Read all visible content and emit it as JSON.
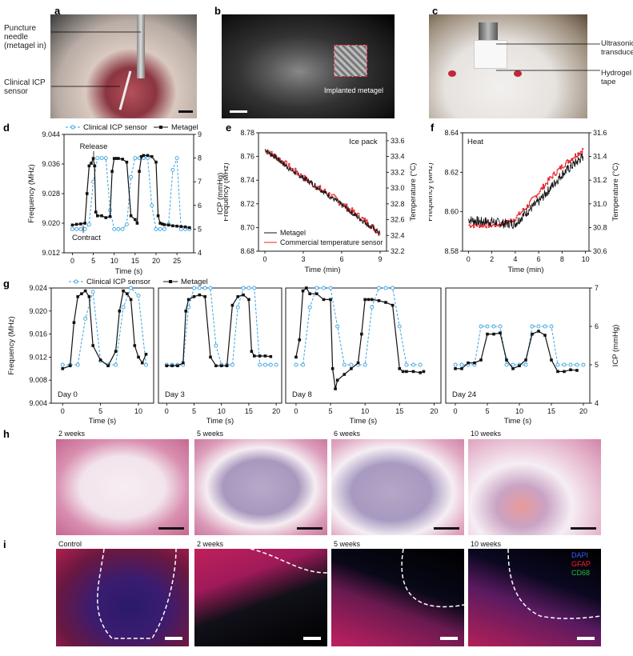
{
  "panels": {
    "a": {
      "label": "a",
      "needle": "Puncture needle (metagel in)",
      "sensor": "Clinical ICP sensor"
    },
    "b": {
      "label": "b",
      "implant": "Implanted metagel"
    },
    "c": {
      "label": "c",
      "transducer": "Ultrasonic transducer",
      "tape": "Hydrogel tape"
    },
    "d": {
      "label": "d"
    },
    "e": {
      "label": "e"
    },
    "f": {
      "label": "f"
    },
    "g": {
      "label": "g"
    },
    "h": {
      "label": "h",
      "weeks": [
        "2 weeks",
        "5 weeks",
        "6 weeks",
        "10 weeks"
      ]
    },
    "i": {
      "label": "i",
      "weeks": [
        "Control",
        "2 weeks",
        "5 weeks",
        "10 weeks"
      ],
      "stains": [
        "DAPI",
        "GFAP",
        "CD68"
      ]
    }
  },
  "colors": {
    "metagel": "#111111",
    "icp": "#3aa3e0",
    "temp": "#e8202a",
    "dapi": "#3a5bff",
    "gfap": "#ff2020",
    "cd68": "#20c040"
  },
  "chart_data": [
    {
      "id": "d",
      "type": "line",
      "xlabel": "Time (s)",
      "ylabel": "Frequency (MHz)",
      "y2label": "ICP (mmHg)",
      "xlim": [
        -2,
        29
      ],
      "ylim": [
        9.012,
        9.044
      ],
      "y2lim": [
        4,
        9
      ],
      "xticks": [
        0,
        5,
        10,
        15,
        20,
        25
      ],
      "yticks": [
        "9.012",
        "9.020",
        "9.028",
        "9.036",
        "9.044"
      ],
      "y2ticks": [
        "4",
        "5",
        "6",
        "7",
        "8",
        "9"
      ],
      "legend": [
        "Clinical ICP sensor",
        "Metagel"
      ],
      "annotations": [
        "Release",
        "Contract"
      ],
      "series": [
        {
          "name": "Metagel",
          "axis": "y",
          "x": [
            0,
            1,
            2,
            3,
            3.5,
            4,
            4.5,
            5,
            5.3,
            5.6,
            6,
            7,
            8,
            9,
            9.5,
            10,
            10.5,
            11,
            12,
            13,
            14,
            15,
            15.5,
            16,
            16.5,
            17,
            18,
            19,
            20,
            20.5,
            21,
            21.5,
            22,
            23,
            24,
            25,
            26,
            27,
            28
          ],
          "y": [
            9.0195,
            9.0197,
            9.0198,
            9.02,
            9.028,
            9.0355,
            9.0362,
            9.0375,
            9.0355,
            9.023,
            9.022,
            9.022,
            9.0215,
            9.0218,
            9.034,
            9.0375,
            9.0375,
            9.0375,
            9.0373,
            9.0365,
            9.022,
            9.021,
            9.02,
            9.034,
            9.038,
            9.0383,
            9.0383,
            9.038,
            9.0365,
            9.022,
            9.02,
            9.0198,
            9.0196,
            9.0195,
            9.0193,
            9.0192,
            9.0191,
            9.019,
            9.0188
          ]
        },
        {
          "name": "Clinical ICP sensor",
          "axis": "y2",
          "x": [
            0,
            1,
            2,
            3,
            4,
            5,
            6,
            7,
            8,
            9,
            10,
            11,
            12,
            13,
            14,
            15,
            16,
            17,
            18,
            19,
            20,
            21,
            22,
            23,
            24,
            25,
            26,
            27,
            28
          ],
          "y": [
            5,
            5,
            5,
            5,
            5.2,
            7,
            8,
            8,
            8,
            5.8,
            5,
            5,
            5,
            5.2,
            7.2,
            8,
            8,
            8,
            8,
            6,
            5,
            5,
            5,
            5.2,
            7.5,
            8,
            5,
            5,
            5
          ]
        }
      ]
    },
    {
      "id": "e",
      "type": "line",
      "annotation": "Ice pack",
      "xlabel": "Time (min)",
      "ylabel": "Frequency (MHz)",
      "y2label": "Temperature (°C)",
      "xlim": [
        -0.5,
        9.5
      ],
      "ylim": [
        8.68,
        8.78
      ],
      "y2lim": [
        32.2,
        33.7
      ],
      "xticks": [
        0,
        3,
        6,
        9
      ],
      "yticks": [
        "8.68",
        "8.70",
        "8.72",
        "8.74",
        "8.76",
        "8.78"
      ],
      "y2ticks": [
        "32.2",
        "32.4",
        "32.6",
        "32.8",
        "33.0",
        "33.2",
        "33.4",
        "33.6"
      ],
      "legend": [
        "Metagel",
        "Commercial temperature sensor"
      ],
      "series": [
        {
          "name": "Metagel",
          "axis": "y",
          "x": [
            0,
            1,
            2,
            3,
            4,
            5,
            6,
            7,
            8,
            9
          ],
          "y": [
            8.766,
            8.758,
            8.749,
            8.742,
            8.735,
            8.727,
            8.719,
            8.711,
            8.703,
            8.695
          ]
        },
        {
          "name": "Commercial temperature sensor",
          "axis": "y2",
          "x": [
            0,
            1,
            2,
            3,
            4,
            5,
            6,
            7,
            8,
            9
          ],
          "y": [
            33.48,
            33.38,
            33.25,
            33.13,
            33.02,
            32.92,
            32.8,
            32.68,
            32.56,
            32.42
          ]
        }
      ]
    },
    {
      "id": "f",
      "type": "line",
      "annotation": "Heat",
      "xlabel": "Time (min)",
      "ylabel": "Frequency (MHz)",
      "y2label": "Temperature (°C)",
      "xlim": [
        -0.5,
        10.3
      ],
      "ylim": [
        8.58,
        8.64
      ],
      "y2lim": [
        30.6,
        31.6
      ],
      "xticks": [
        0,
        2,
        4,
        6,
        8,
        10
      ],
      "yticks": [
        "8.58",
        "8.60",
        "8.62",
        "8.64"
      ],
      "y2ticks": [
        "30.6",
        "30.8",
        "31.0",
        "31.2",
        "31.4",
        "31.6"
      ],
      "series": [
        {
          "name": "Metagel",
          "axis": "y",
          "x": [
            0,
            1,
            2,
            3,
            4,
            5,
            6,
            7,
            8,
            9,
            9.8
          ],
          "y": [
            8.596,
            8.595,
            8.595,
            8.594,
            8.594,
            8.6,
            8.605,
            8.612,
            8.619,
            8.624,
            8.628
          ]
        },
        {
          "name": "Commercial temperature sensor",
          "axis": "y2",
          "x": [
            0,
            1,
            2,
            3,
            4,
            5,
            6,
            7,
            8,
            9,
            9.8
          ],
          "y": [
            30.82,
            30.82,
            30.82,
            30.83,
            30.88,
            30.98,
            31.1,
            31.22,
            31.32,
            31.4,
            31.46
          ]
        }
      ]
    },
    {
      "id": "g",
      "type": "line",
      "ylabel": "Frequency (MHz)",
      "y2label": "ICP (mmHg)",
      "xlabel": "Time (s)",
      "ylim": [
        9.004,
        9.024
      ],
      "y2lim": [
        4,
        7
      ],
      "yticks": [
        "9.004",
        "9.008",
        "9.012",
        "9.016",
        "9.020",
        "9.024"
      ],
      "y2ticks": [
        "4",
        "5",
        "6",
        "7"
      ],
      "legend": [
        "Clinical ICP sensor",
        "Metagel"
      ],
      "subpanels": [
        {
          "title": "Day 0",
          "xlim": [
            -1.5,
            12
          ],
          "xticks": [
            0,
            5,
            10
          ],
          "metagel": {
            "x": [
              0,
              1,
              1.5,
              2,
              2.5,
              3,
              3.5,
              4,
              5,
              6,
              7,
              7.5,
              8,
              8.5,
              9,
              9.5,
              10,
              10.5,
              11
            ],
            "y": [
              9.01,
              9.0105,
              9.018,
              9.0225,
              9.023,
              9.0235,
              9.0225,
              9.014,
              9.0115,
              9.0105,
              9.013,
              9.02,
              9.0235,
              9.023,
              9.022,
              9.014,
              9.012,
              9.011,
              9.0125
            ]
          },
          "icp": {
            "x": [
              0,
              1,
              2,
              3,
              4,
              5,
              6,
              7,
              8,
              9,
              10,
              11
            ],
            "y": [
              5,
              5,
              5,
              6.2,
              6.9,
              5.1,
              5,
              5,
              6.5,
              7,
              6.8,
              5
            ]
          }
        },
        {
          "title": "Day 3",
          "xlim": [
            -1.5,
            21
          ],
          "xticks": [
            0,
            5,
            10,
            15,
            20
          ],
          "metagel": {
            "x": [
              0,
              1,
              2,
              3,
              3.5,
              4,
              5,
              6,
              7,
              8,
              9,
              10,
              11,
              12,
              13,
              14,
              15,
              15.5,
              16,
              17,
              18,
              19
            ],
            "y": [
              9.0105,
              9.0105,
              9.0105,
              9.011,
              9.02,
              9.022,
              9.0225,
              9.0228,
              9.0225,
              9.012,
              9.0105,
              9.0105,
              9.0105,
              9.021,
              9.0225,
              9.0228,
              9.022,
              9.013,
              9.0122,
              9.0122,
              9.0122,
              9.0121
            ]
          },
          "icp": {
            "x": [
              0,
              1,
              2,
              3,
              4,
              5,
              6,
              7,
              8,
              9,
              10,
              11,
              12,
              13,
              14,
              15,
              16,
              17,
              18,
              19,
              20
            ],
            "y": [
              5,
              5,
              5,
              5,
              6.5,
              7,
              7,
              7,
              7,
              5.5,
              5,
              5,
              5,
              6.5,
              7,
              7,
              7,
              5,
              5,
              5,
              5
            ]
          }
        },
        {
          "title": "Day 8",
          "xlim": [
            -1.5,
            21
          ],
          "xticks": [
            0,
            5,
            10,
            15,
            20
          ],
          "metagel": {
            "x": [
              0,
              0.5,
              1,
              1.5,
              2,
              3,
              4,
              5,
              5.3,
              5.7,
              6,
              7,
              8,
              9,
              9.5,
              10,
              10.5,
              11,
              12,
              13,
              14,
              15,
              15.5,
              16,
              17,
              18,
              18.5
            ],
            "y": [
              9.012,
              9.015,
              9.0235,
              9.024,
              9.023,
              9.023,
              9.022,
              9.022,
              9.01,
              9.0065,
              9.008,
              9.009,
              9.01,
              9.011,
              9.016,
              9.022,
              9.022,
              9.022,
              9.0218,
              9.0215,
              9.021,
              9.01,
              9.0095,
              9.0095,
              9.0095,
              9.0093,
              9.0095
            ]
          },
          "icp": {
            "x": [
              0,
              1,
              2,
              3,
              4,
              5,
              6,
              7,
              8,
              9,
              10,
              11,
              12,
              13,
              14,
              15,
              16,
              17,
              18
            ],
            "y": [
              5,
              5,
              6.5,
              7,
              7,
              7,
              6,
              5,
              5,
              5,
              5,
              6.5,
              7,
              7,
              7,
              6,
              5,
              5,
              5
            ]
          }
        },
        {
          "title": "Day 24",
          "xlim": [
            -1.5,
            21
          ],
          "xticks": [
            0,
            5,
            10,
            15,
            20
          ],
          "metagel": {
            "x": [
              0,
              1,
              2,
              3,
              4,
              5,
              6,
              7,
              8,
              9,
              10,
              11,
              12,
              13,
              14,
              15,
              16,
              17,
              18,
              19
            ],
            "y": [
              9.01,
              9.01,
              9.011,
              9.011,
              9.0115,
              9.016,
              9.016,
              9.0162,
              9.0115,
              9.01,
              9.0105,
              9.0115,
              9.016,
              9.0165,
              9.0158,
              9.0115,
              9.0095,
              9.0095,
              9.0098,
              9.0097
            ]
          },
          "icp": {
            "x": [
              0,
              1,
              2,
              3,
              4,
              5,
              6,
              7,
              8,
              9,
              10,
              11,
              12,
              13,
              14,
              15,
              16,
              17,
              18,
              19,
              20
            ],
            "y": [
              5,
              5,
              5,
              5,
              6,
              6,
              6,
              6,
              5,
              5,
              5,
              5,
              6,
              6,
              6,
              6,
              5,
              5,
              5,
              5,
              5
            ]
          }
        }
      ]
    }
  ]
}
